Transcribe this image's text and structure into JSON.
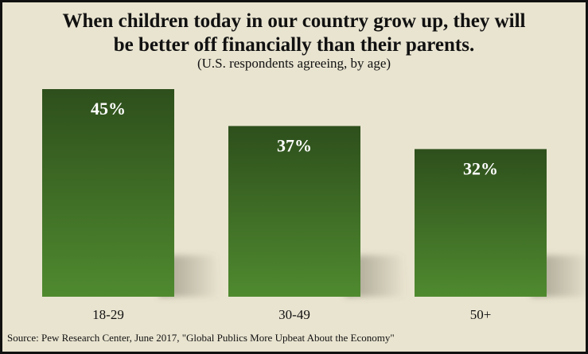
{
  "chart_data": {
    "type": "bar",
    "title": "When children today in our country grow up, they will be better off financially than their parents.",
    "title_lines": [
      "When children today in our country grow up, they will",
      "be better off financially than their parents."
    ],
    "subtitle": "(U.S. respondents agreeing, by age)",
    "categories": [
      "18-29",
      "30-49",
      "50+"
    ],
    "values": [
      45,
      37,
      32
    ],
    "value_labels": [
      "45%",
      "37%",
      "32%"
    ],
    "xlabel": "",
    "ylabel": "",
    "ylim": [
      0,
      50
    ],
    "grid": false,
    "legend": "none",
    "source": "Source: Pew Research Center, June 2017, \"Global Publics More Upbeat About the Economy\""
  },
  "colors": {
    "background": "#e9e4d0",
    "bar_top": "#2e4f1c",
    "bar_bottom": "#4f8a2f",
    "label": "#ffffff",
    "text": "#111111"
  }
}
